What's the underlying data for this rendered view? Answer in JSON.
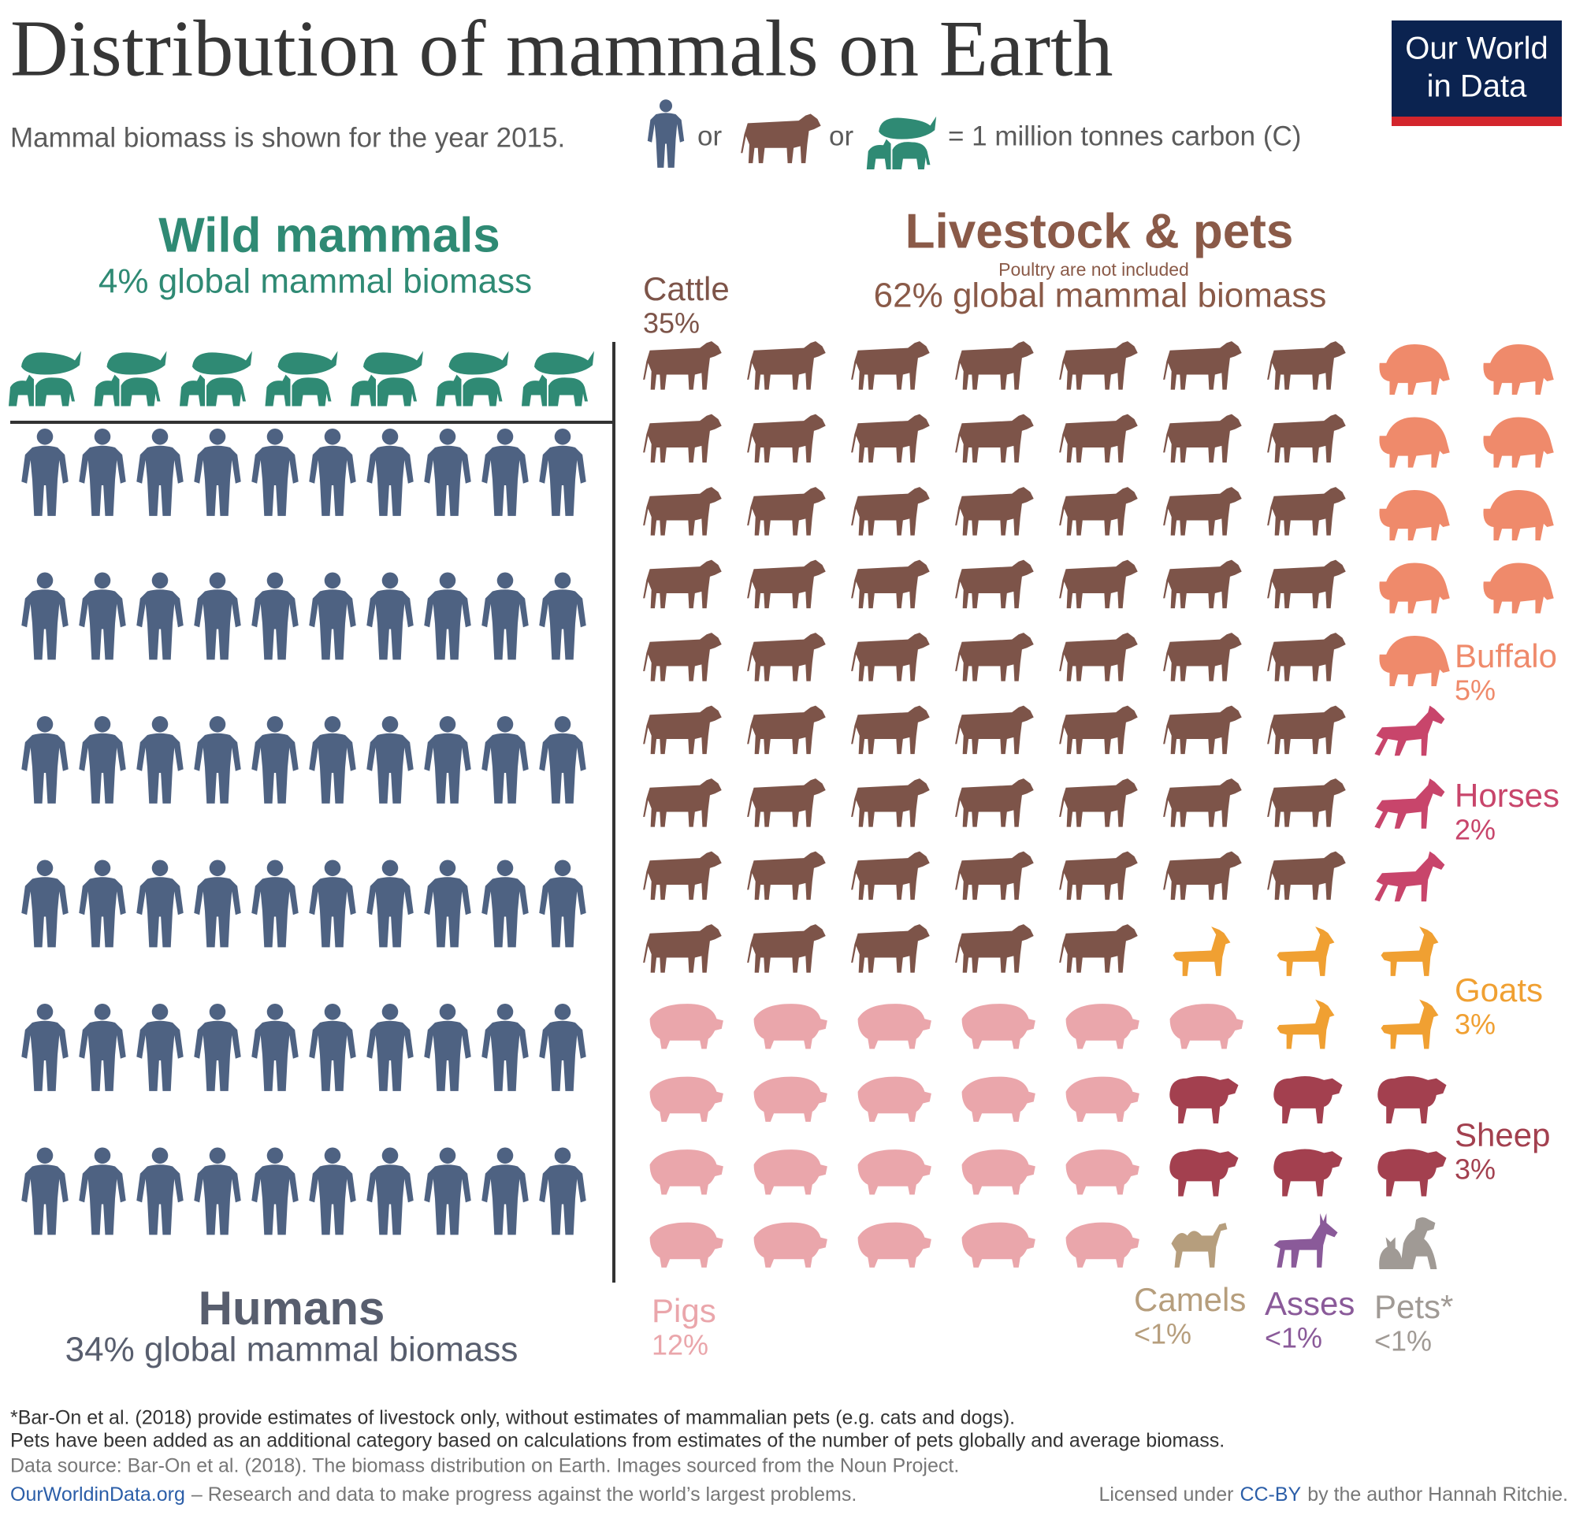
{
  "title": "Distribution of mammals on Earth",
  "subtitle": {
    "text": "Mammal biomass is shown for the year 2015.",
    "or": [
      "or",
      "or"
    ],
    "unit": "= 1 million tonnes carbon (C)"
  },
  "logo": [
    "Our World",
    "in Data"
  ],
  "wild": {
    "title": "Wild mammals",
    "share": "4% global mammal biomass",
    "count": 7,
    "color": "#2f8a74"
  },
  "humans": {
    "title": "Humans",
    "share": "34% global mammal biomass",
    "count": 60,
    "color": "#4e6282"
  },
  "livestock": {
    "title": "Livestock & pets",
    "note": "Poultry are not included",
    "share": "62% global mammal biomass",
    "groups": [
      {
        "name": "Cattle",
        "share": "35%",
        "count": 61,
        "color": "#7d5449"
      },
      {
        "name": "Buffalo",
        "share": "5%",
        "count": 9,
        "color": "#ef8a6b"
      },
      {
        "name": "Horses",
        "share": "2%",
        "count": 3,
        "color": "#c8456b"
      },
      {
        "name": "Goats",
        "share": "3%",
        "count": 5,
        "color": "#f0a032"
      },
      {
        "name": "Sheep",
        "share": "3%",
        "count": 6,
        "color": "#a3404f"
      },
      {
        "name": "Pigs",
        "share": "12%",
        "count": 21,
        "color": "#eaa6ab"
      },
      {
        "name": "Camels",
        "share": "<1%",
        "count": 1,
        "color": "#b69e7d"
      },
      {
        "name": "Asses",
        "share": "<1%",
        "count": 1,
        "color": "#8a5a99"
      },
      {
        "name": "Pets*",
        "share": "<1%",
        "count": 1,
        "color": "#a09a95"
      }
    ]
  },
  "footer": {
    "notes": [
      "*Bar-On et al. (2018) provide estimates of livestock only, without estimates of mammalian pets (e.g. cats and dogs).",
      "Pets have been added as an additional category based on calculations from estimates of the number of pets globally and average biomass."
    ],
    "source": "Data source: Bar-On et al. (2018). The biomass distribution on Earth. Images sourced from the Noun Project.",
    "site": "OurWorldinData.org",
    "tagline": "– Research and data to make progress against the world’s largest problems.",
    "license": [
      "Licensed under",
      "CC-BY",
      "by the author Hannah Ritchie."
    ]
  }
}
